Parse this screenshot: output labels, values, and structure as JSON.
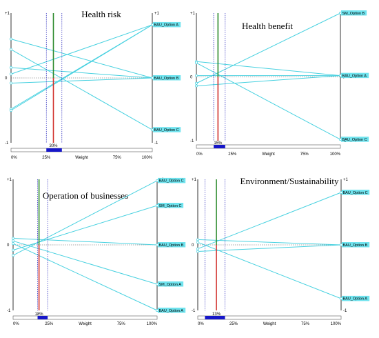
{
  "colors": {
    "line": "#48d1e0",
    "label_bg": "#6fe3ee",
    "axis": "#000000",
    "center_line": "#555555",
    "upper_weight_line": "#2e8b2e",
    "lower_weight_line": "#d2322d",
    "range_dotted": "#1a1ab8",
    "bar_fill": "#1616c8",
    "bar_outline": "#555555"
  },
  "chart_data": [
    {
      "type": "line",
      "title": "Health risk",
      "ylim": [
        -1,
        1
      ],
      "y_ticks": [
        "+1",
        "0",
        "-1"
      ],
      "x_ticks": [
        "0%",
        "25%",
        "Weight",
        "75%",
        "100%"
      ],
      "weight": 30,
      "weight_label": "30%",
      "weight_range": [
        25,
        36
      ],
      "series": [
        {
          "name": "BAU_Option A",
          "values": [
            -0.48,
            0.82
          ]
        },
        {
          "name": "BAU_Option B",
          "values": [
            0.6,
            0.0
          ]
        },
        {
          "name": "BAU_Option C",
          "values": [
            0.44,
            -0.8
          ]
        },
        {
          "values": [
            0.16,
            0.0
          ]
        },
        {
          "values": [
            -0.08,
            0.0
          ]
        },
        {
          "values": [
            -0.5,
            0.82
          ]
        },
        {
          "values": [
            0.06,
            0.82
          ]
        }
      ],
      "labels_right": [
        "BAU_Option A",
        "BAU_Option B",
        "BAU_Option C"
      ]
    },
    {
      "type": "line",
      "title": "Health benefit",
      "ylim": [
        -1,
        1
      ],
      "y_ticks": [
        "+1",
        "0",
        "-1"
      ],
      "x_ticks": [
        "0%",
        "25%",
        "Weight",
        "75%",
        "100%"
      ],
      "weight": 15,
      "weight_label": "15%",
      "weight_range": [
        12,
        20
      ],
      "series": [
        {
          "name": "SM_Option B",
          "values": [
            -0.1,
            1.0
          ]
        },
        {
          "name": "BAU_Option A",
          "values": [
            0.24,
            0.02
          ]
        },
        {
          "name": "BAU_Option C",
          "values": [
            0.22,
            -0.98
          ]
        },
        {
          "values": [
            -0.14,
            0.02
          ]
        },
        {
          "values": [
            0.02,
            0.02
          ]
        }
      ],
      "labels_right": [
        "SM_Option B",
        "BAU_Option A",
        "BAU_Option C"
      ]
    },
    {
      "type": "line",
      "title": "Operation of businesses",
      "ylim": [
        -1,
        1
      ],
      "y_ticks": [
        "+1",
        "0",
        "-1"
      ],
      "x_ticks": [
        "0%",
        "25%",
        "Weight",
        "75%",
        "100%"
      ],
      "weight": 18,
      "weight_label": "18%",
      "weight_range": [
        17,
        24
      ],
      "series": [
        {
          "name": "BAU_Option C",
          "values": [
            -0.16,
            0.98
          ]
        },
        {
          "name": "SM_Option C",
          "values": [
            -0.08,
            0.6
          ]
        },
        {
          "name": "BAU_Option B",
          "values": [
            0.1,
            0.0
          ]
        },
        {
          "name": "SM_Option A",
          "values": [
            0.06,
            -0.6
          ]
        },
        {
          "name": "BAU_Option A",
          "values": [
            0.02,
            -1.0
          ]
        }
      ],
      "labels_right": [
        "BAU_Option C",
        "SM_Option C",
        "BAU_Option B",
        "SM_Option A",
        "BAU_Option A"
      ]
    },
    {
      "type": "line",
      "title": "Environment/Sustainability",
      "ylim": [
        -1,
        1
      ],
      "y_ticks": [
        "+1",
        "0",
        "-1"
      ],
      "x_ticks": [
        "0%",
        "25%",
        "Weight",
        "75%",
        "100%"
      ],
      "weight": 13,
      "weight_label": "13%",
      "weight_range": [
        5,
        19
      ],
      "series": [
        {
          "name": "BAU_Option C",
          "values": [
            -0.06,
            0.8
          ]
        },
        {
          "name": "BAU_Option B",
          "values": [
            0.08,
            0.0
          ]
        },
        {
          "name": "BAU_Option A",
          "values": [
            0.04,
            -0.82
          ]
        },
        {
          "values": [
            -0.1,
            0.0
          ]
        }
      ],
      "labels_right": [
        "BAU_Option C",
        "BAU_Option B",
        "BAU_Option A"
      ]
    }
  ]
}
